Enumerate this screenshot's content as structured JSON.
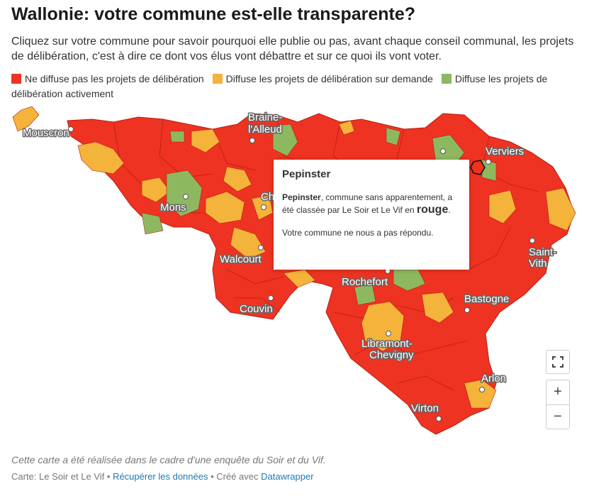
{
  "title": "Wallonie: votre commune est-elle transparente?",
  "subtitle": "Cliquez sur votre commune pour savoir pourquoi elle publie ou pas, avant chaque conseil communal, les projets de délibération, c'est à dire ce dont vos élus vont débattre et sur ce quoi ils vont voter.",
  "legend": [
    {
      "label": "Ne diffuse pas les projets de délibération",
      "color": "#ee3322"
    },
    {
      "label": "Diffuse les projets de délibération sur demande",
      "color": "#f4b33a"
    },
    {
      "label": "Diffuse les projets de délibération activement",
      "color": "#8db860"
    }
  ],
  "colors": {
    "red": "#ee3322",
    "orange": "#f4b33a",
    "green": "#8db860",
    "border": "#b81e12"
  },
  "cities": {
    "mouscron": "Mouscron",
    "braine_1": "Braine-",
    "braine_2": "l'Alleud",
    "verviers": "Verviers",
    "mons": "Mons",
    "charleroi_partial": "Ch",
    "walcourt": "Walcourt",
    "rochefort": "Rochefort",
    "saint_vith_1": "Saint-",
    "saint_vith_2": "Vith",
    "couvin": "Couvin",
    "bastogne": "Bastogne",
    "libramont_1": "Libramont-",
    "libramont_2": "Chevigny",
    "arlon": "Arlon",
    "virton": "Virton"
  },
  "tooltip": {
    "title": "Pepinster",
    "name": "Pepinster",
    "text_1": ", commune sans apparentement, a été classée par Le Soir et Le Vif en ",
    "color_word": "rouge",
    "text_2": ".",
    "note": "Votre commune ne nous a pas répondu."
  },
  "controls": {
    "fit_icon": "fit-bounds-icon",
    "zoom_in": "+",
    "zoom_out": "−"
  },
  "note": "Cette carte a été réalisée dans le cadre d'une enquête du Soir et du Vif.",
  "footer": {
    "source": "Carte: Le Soir et Le Vif",
    "sep1": " • ",
    "download": "Récupérer les données",
    "sep2": " • Créé avec ",
    "tool": "Datawrapper"
  }
}
